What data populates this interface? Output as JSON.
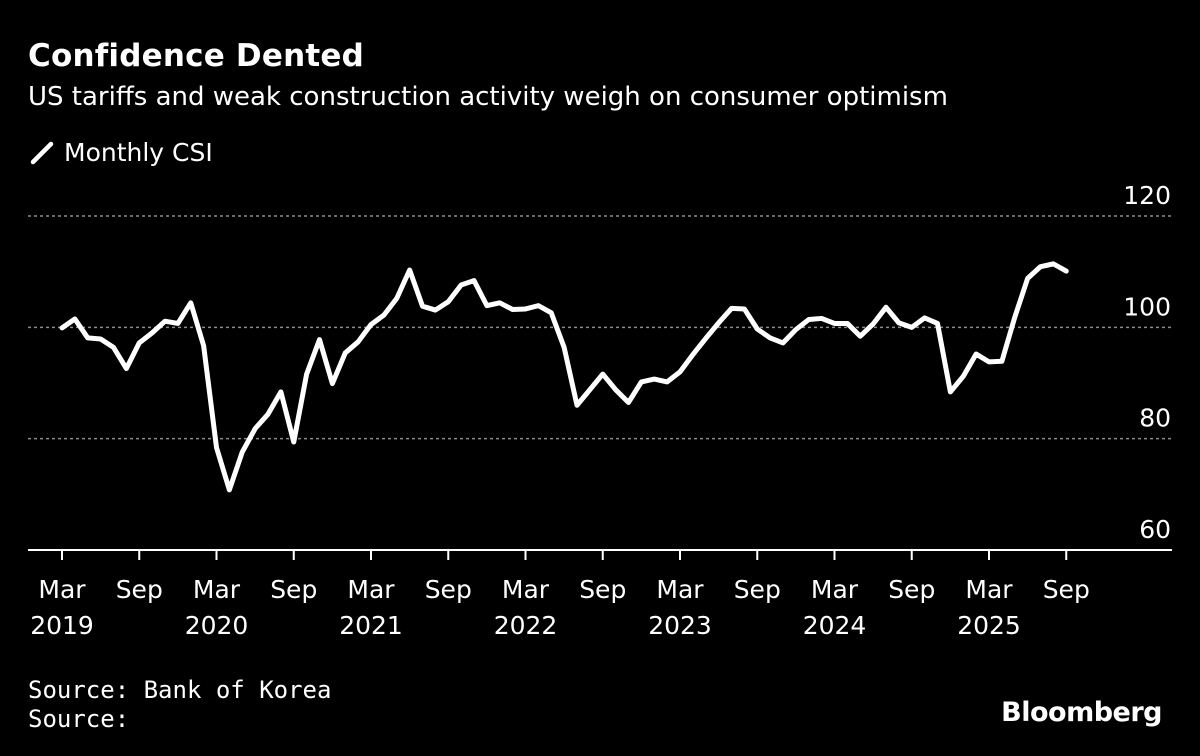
{
  "header": {
    "title": "Confidence Dented",
    "subtitle": "US tariffs and weak construction activity weigh on consumer optimism"
  },
  "colors": {
    "background": "#000000",
    "line": "#ffffff",
    "grid": "#8c8c8c"
  },
  "chart_data": {
    "type": "line",
    "title": "Confidence Dented",
    "subtitle": "US tariffs and weak construction activity weigh on consumer optimism",
    "legend_position": "top-left",
    "grid": true,
    "ylim": [
      60,
      120
    ],
    "yticks": [
      60,
      80,
      100,
      120
    ],
    "xlabel": "",
    "ylabel": "",
    "start_month": "2019-03",
    "x_ticks": [
      {
        "month_index": 0,
        "label": "Mar",
        "year": "2019"
      },
      {
        "month_index": 6,
        "label": "Sep",
        "year": ""
      },
      {
        "month_index": 12,
        "label": "Mar",
        "year": "2020"
      },
      {
        "month_index": 18,
        "label": "Sep",
        "year": ""
      },
      {
        "month_index": 24,
        "label": "Mar",
        "year": "2021"
      },
      {
        "month_index": 30,
        "label": "Sep",
        "year": ""
      },
      {
        "month_index": 36,
        "label": "Mar",
        "year": "2022"
      },
      {
        "month_index": 42,
        "label": "Sep",
        "year": ""
      },
      {
        "month_index": 48,
        "label": "Mar",
        "year": "2023"
      },
      {
        "month_index": 54,
        "label": "Sep",
        "year": ""
      },
      {
        "month_index": 60,
        "label": "Mar",
        "year": "2024"
      },
      {
        "month_index": 66,
        "label": "Sep",
        "year": ""
      },
      {
        "month_index": 72,
        "label": "Mar",
        "year": "2025"
      },
      {
        "month_index": 78,
        "label": "Sep",
        "year": ""
      }
    ],
    "series": [
      {
        "name": "Monthly CSI",
        "values": [
          99.9,
          101.5,
          98.1,
          97.9,
          96.4,
          92.6,
          97.2,
          99.0,
          101.1,
          100.7,
          104.4,
          96.7,
          78.4,
          70.8,
          77.6,
          81.8,
          84.4,
          88.4,
          79.4,
          91.6,
          97.8,
          89.9,
          95.4,
          97.4,
          100.5,
          102.2,
          105.2,
          110.3,
          103.8,
          103.1,
          104.6,
          107.6,
          108.4,
          103.9,
          104.4,
          103.2,
          103.3,
          103.9,
          102.6,
          96.4,
          86.0,
          88.8,
          91.6,
          88.8,
          86.5,
          90.2,
          90.7,
          90.2,
          92.0,
          95.1,
          98.0,
          100.8,
          103.4,
          103.3,
          99.7,
          98.1,
          97.2,
          99.6,
          101.4,
          101.6,
          100.7,
          100.7,
          98.4,
          100.6,
          103.6,
          100.8,
          100.0,
          101.7,
          100.7,
          88.4,
          91.2,
          95.2,
          93.8,
          93.9,
          101.8,
          108.8,
          110.9,
          111.4,
          110.1
        ]
      }
    ]
  },
  "footer": {
    "source_line_1": "Source: Bank of Korea",
    "source_line_2": "Source:",
    "brand": "Bloomberg"
  },
  "icons": {
    "legend": "line-swatch-icon"
  }
}
